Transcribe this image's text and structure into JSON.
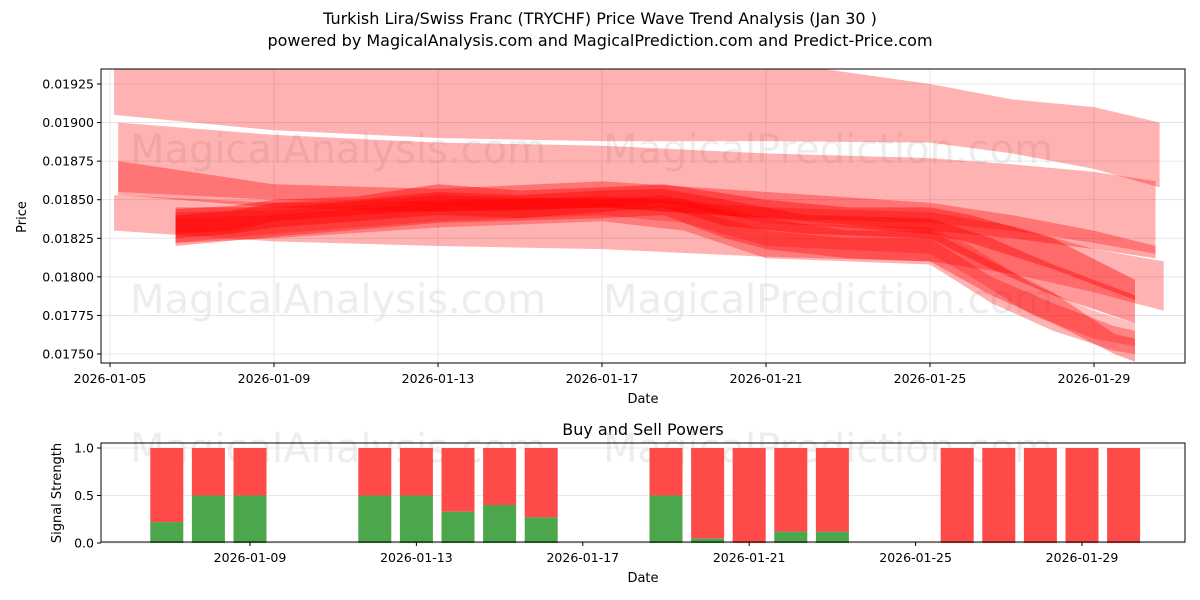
{
  "header": {
    "title": "Turkish Lira/Swiss Franc (TRYCHF) Price Wave Trend Analysis (Jan 30 )",
    "subtitle": "powered by MagicalAnalysis.com and MagicalPrediction.com and Predict-Price.com"
  },
  "watermarks": {
    "left": "MagicalAnalysis.com",
    "right": "MagicalPrediction.com"
  },
  "colors": {
    "band": "#ff0000",
    "buy": "#4ca64c",
    "sell": "#ff4a4a",
    "grid": "#e0e0e0"
  },
  "chart_data": [
    {
      "type": "area",
      "title": "Turkish Lira/Swiss Franc (TRYCHF) Price Wave Trend Analysis (Jan 30 )",
      "xlabel": "Date",
      "ylabel": "Price",
      "ylim": [
        0.01743,
        0.01944
      ],
      "xlim": [
        "2026-01-04.8",
        "2026-01-31.2"
      ],
      "grid": true,
      "x_ticks": [
        "2026-01-05",
        "2026-01-09",
        "2026-01-13",
        "2026-01-17",
        "2026-01-21",
        "2026-01-25",
        "2026-01-29"
      ],
      "y_ticks": [
        "0.01750",
        "0.01775",
        "0.01800",
        "0.01825",
        "0.01850",
        "0.01875",
        "0.01900",
        "0.01925"
      ],
      "bands": [
        {
          "name": "wave-upper-1",
          "opacity": 0.3,
          "points": [
            [
              5.1,
              0.0195,
              0.01905
            ],
            [
              9,
              0.0195,
              0.01895
            ],
            [
              13,
              0.0195,
              0.0189
            ],
            [
              17,
              0.0195,
              0.01888
            ],
            [
              21,
              0.0194,
              0.01888
            ],
            [
              25,
              0.01925,
              0.01887
            ],
            [
              27,
              0.01915,
              0.0188
            ],
            [
              29,
              0.0191,
              0.0187
            ],
            [
              30.6,
              0.019,
              0.01858
            ]
          ]
        },
        {
          "name": "wave-upper-2",
          "opacity": 0.3,
          "points": [
            [
              5.2,
              0.019,
              0.01855
            ],
            [
              9,
              0.01892,
              0.0185
            ],
            [
              13,
              0.01887,
              0.01847
            ],
            [
              17,
              0.01885,
              0.01845
            ],
            [
              21,
              0.0188,
              0.01838
            ],
            [
              25,
              0.01877,
              0.01835
            ],
            [
              27,
              0.01873,
              0.0183
            ],
            [
              29,
              0.01868,
              0.01822
            ],
            [
              30.5,
              0.01862,
              0.01815
            ]
          ]
        },
        {
          "name": "wave-mid-1",
          "opacity": 0.35,
          "points": [
            [
              5.2,
              0.01875,
              0.01853
            ],
            [
              9,
              0.0186,
              0.01845
            ],
            [
              13,
              0.01857,
              0.01842
            ],
            [
              17,
              0.01862,
              0.01845
            ],
            [
              21,
              0.01855,
              0.01838
            ],
            [
              25,
              0.01848,
              0.0183
            ],
            [
              27,
              0.0184,
              0.01825
            ],
            [
              29,
              0.0183,
              0.01818
            ],
            [
              30.5,
              0.0182,
              0.01812
            ]
          ]
        },
        {
          "name": "wave-lower-1",
          "opacity": 0.3,
          "points": [
            [
              5.1,
              0.01853,
              0.0183
            ],
            [
              9,
              0.01848,
              0.01823
            ],
            [
              13,
              0.01849,
              0.0182
            ],
            [
              17,
              0.01852,
              0.01818
            ],
            [
              21,
              0.01845,
              0.01813
            ],
            [
              25,
              0.01842,
              0.0181
            ],
            [
              27,
              0.01833,
              0.01802
            ],
            [
              29,
              0.01818,
              0.0179
            ],
            [
              30.7,
              0.0181,
              0.01778
            ]
          ]
        },
        {
          "name": "wave-core-1",
          "opacity": 0.4,
          "points": [
            [
              6.6,
              0.01844,
              0.01828
            ],
            [
              8,
              0.01846,
              0.0183
            ],
            [
              9,
              0.0185,
              0.01836
            ],
            [
              11,
              0.01852,
              0.0184
            ],
            [
              13,
              0.0186,
              0.01843
            ],
            [
              15,
              0.01856,
              0.01843
            ],
            [
              17,
              0.01858,
              0.01845
            ],
            [
              18.5,
              0.0186,
              0.01848
            ],
            [
              21,
              0.0185,
              0.01835
            ],
            [
              23,
              0.01845,
              0.01832
            ],
            [
              25,
              0.01845,
              0.01828
            ],
            [
              26,
              0.0184,
              0.01822
            ],
            [
              28,
              0.01825,
              0.01805
            ],
            [
              30,
              0.01798,
              0.01785
            ]
          ]
        },
        {
          "name": "wave-core-2",
          "opacity": 0.4,
          "points": [
            [
              6.6,
              0.0184,
              0.01825
            ],
            [
              8,
              0.01843,
              0.01828
            ],
            [
              9,
              0.01848,
              0.01832
            ],
            [
              11,
              0.0185,
              0.01836
            ],
            [
              13,
              0.01855,
              0.0184
            ],
            [
              15,
              0.01853,
              0.01838
            ],
            [
              17,
              0.01856,
              0.01842
            ],
            [
              18.5,
              0.01857,
              0.01845
            ],
            [
              20,
              0.0185,
              0.01833
            ],
            [
              22,
              0.0184,
              0.01828
            ],
            [
              25,
              0.01838,
              0.01825
            ],
            [
              26.5,
              0.01825,
              0.01805
            ],
            [
              28,
              0.01808,
              0.01788
            ],
            [
              30,
              0.01788,
              0.0177
            ]
          ]
        },
        {
          "name": "wave-core-3",
          "opacity": 0.35,
          "points": [
            [
              6.6,
              0.01845,
              0.0182
            ],
            [
              9,
              0.01845,
              0.01826
            ],
            [
              13,
              0.01853,
              0.01835
            ],
            [
              17,
              0.0185,
              0.01838
            ],
            [
              18.5,
              0.01853,
              0.0184
            ],
            [
              20,
              0.01845,
              0.01825
            ],
            [
              21,
              0.01838,
              0.01818
            ],
            [
              23,
              0.0183,
              0.01812
            ],
            [
              25,
              0.0183,
              0.0181
            ],
            [
              26.5,
              0.0181,
              0.01788
            ],
            [
              28,
              0.0179,
              0.0177
            ],
            [
              29.5,
              0.01763,
              0.0175
            ],
            [
              30,
              0.0176,
              0.01745
            ]
          ]
        },
        {
          "name": "wave-core-4",
          "opacity": 0.3,
          "points": [
            [
              6.6,
              0.01838,
              0.01822
            ],
            [
              9,
              0.0184,
              0.01825
            ],
            [
              13,
              0.01848,
              0.01832
            ],
            [
              17,
              0.01848,
              0.01836
            ],
            [
              19,
              0.01845,
              0.0183
            ],
            [
              21,
              0.0183,
              0.01812
            ],
            [
              23,
              0.01825,
              0.0181
            ],
            [
              25,
              0.01825,
              0.01808
            ],
            [
              26.5,
              0.018,
              0.01783
            ],
            [
              28,
              0.01783,
              0.01765
            ],
            [
              29.5,
              0.01768,
              0.01752
            ],
            [
              30,
              0.01765,
              0.0175
            ]
          ]
        },
        {
          "name": "wave-core-5",
          "opacity": 0.25,
          "points": [
            [
              6.6,
              0.01842,
              0.01822
            ],
            [
              9,
              0.01843,
              0.01828
            ],
            [
              13,
              0.0185,
              0.01836
            ],
            [
              17,
              0.01852,
              0.0184
            ],
            [
              19,
              0.0185,
              0.01835
            ],
            [
              21,
              0.01835,
              0.0182
            ],
            [
              25,
              0.01832,
              0.01815
            ],
            [
              26,
              0.0182,
              0.018
            ],
            [
              27.5,
              0.01795,
              0.01775
            ],
            [
              29,
              0.01778,
              0.0176
            ],
            [
              30,
              0.0177,
              0.01755
            ]
          ]
        }
      ]
    },
    {
      "type": "bar",
      "title": "Buy and Sell Powers",
      "xlabel": "Date",
      "ylabel": "Signal Strength",
      "ylim": [
        0,
        1.05
      ],
      "x_ticks": [
        "2026-01-09",
        "2026-01-13",
        "2026-01-17",
        "2026-01-21",
        "2026-01-25",
        "2026-01-29"
      ],
      "y_ticks": [
        "0.0",
        "0.5",
        "1.0"
      ],
      "categories": [
        "2026-01-07",
        "2026-01-08",
        "2026-01-09",
        "2026-01-12",
        "2026-01-13",
        "2026-01-14",
        "2026-01-15",
        "2026-01-16",
        "2026-01-19",
        "2026-01-20",
        "2026-01-21",
        "2026-01-22",
        "2026-01-23",
        "2026-01-26",
        "2026-01-27",
        "2026-01-28",
        "2026-01-29",
        "2026-01-30"
      ],
      "days": [
        7,
        8,
        9,
        12,
        13,
        14,
        15,
        16,
        19,
        20,
        21,
        22,
        23,
        26,
        27,
        28,
        29,
        30
      ],
      "series": [
        {
          "name": "Buy",
          "color": "#4ca64c",
          "values": [
            0.22,
            0.5,
            0.5,
            0.5,
            0.5,
            0.33,
            0.4,
            0.27,
            0.5,
            0.05,
            0.0,
            0.12,
            0.12,
            0.0,
            0.0,
            0.0,
            0.0,
            0.0
          ]
        },
        {
          "name": "Sell",
          "color": "#ff4a4a",
          "values": [
            0.78,
            0.5,
            0.5,
            0.5,
            0.5,
            0.67,
            0.6,
            0.73,
            0.5,
            0.95,
            1.0,
            0.88,
            0.88,
            1.0,
            1.0,
            1.0,
            1.0,
            1.0
          ]
        }
      ]
    }
  ]
}
